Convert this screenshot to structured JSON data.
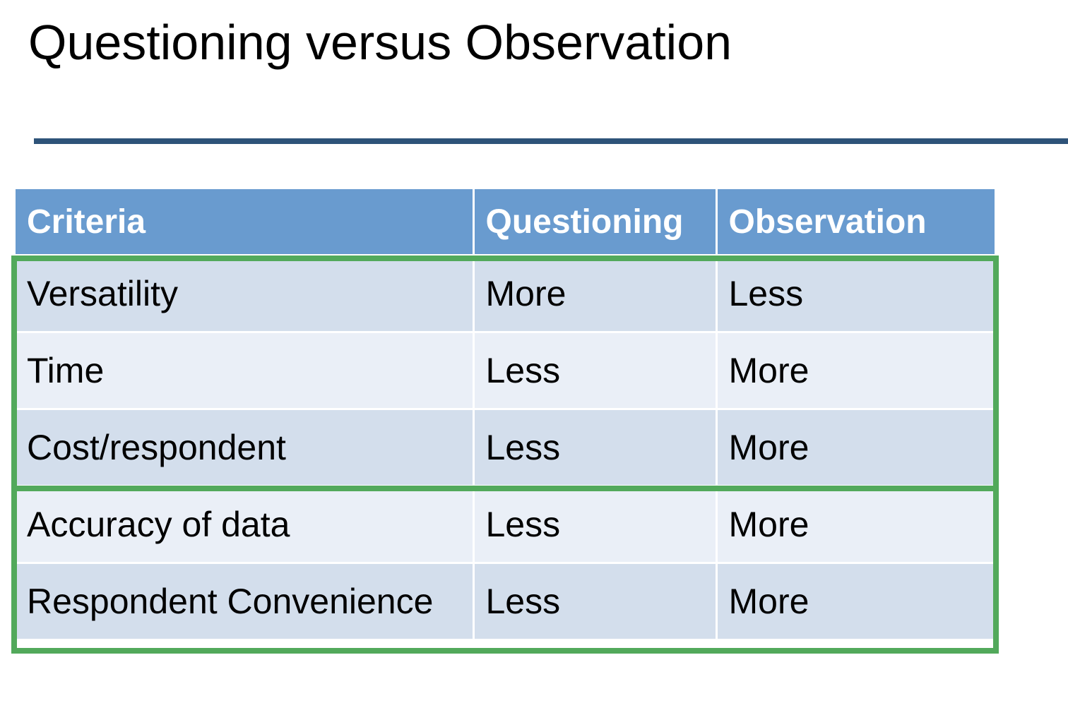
{
  "slide": {
    "title": "Questioning versus Observation"
  },
  "table": {
    "headers": [
      "Criteria",
      "Questioning",
      "Observation"
    ],
    "rows": [
      [
        "Versatility",
        "More",
        "Less"
      ],
      [
        "Time",
        "Less",
        "More"
      ],
      [
        "Cost/respondent",
        "Less",
        "More"
      ],
      [
        "Accuracy of data",
        "Less",
        "More"
      ],
      [
        "Respondent Convenience",
        "Less",
        "More"
      ]
    ],
    "colors": {
      "header_bg": "#699bcf",
      "row_dark": "#d3deec",
      "row_light": "#eaeff7",
      "group_border": "#52a95b",
      "title_rule": "#2e5379"
    }
  }
}
